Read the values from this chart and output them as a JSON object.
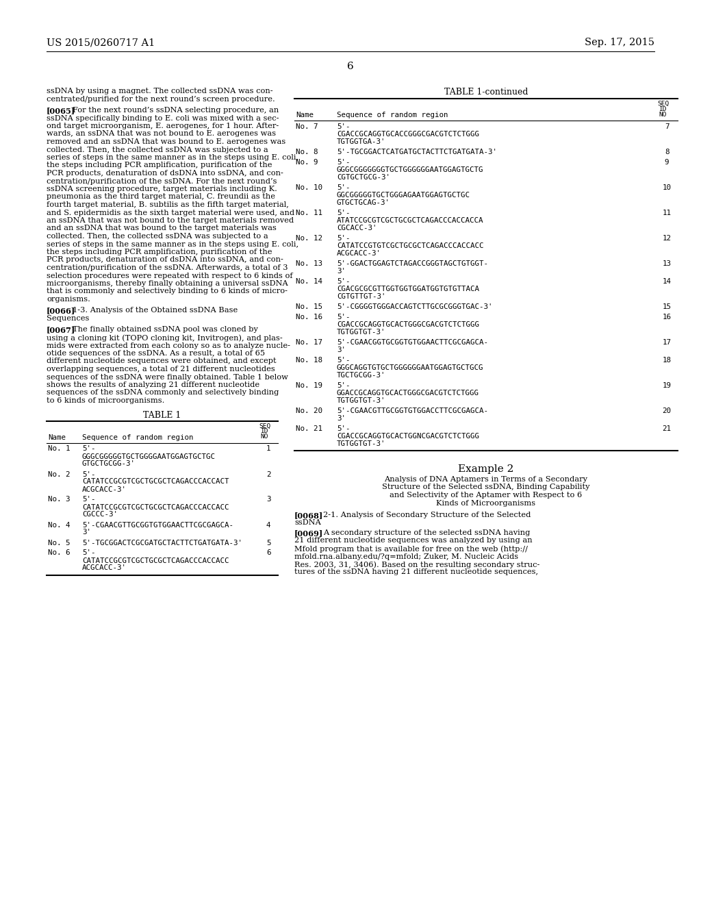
{
  "header_left": "US 2015/0260717 A1",
  "header_right": "Sep. 17, 2015",
  "page_number": "6",
  "bg_color": "#ffffff",
  "text_color": "#000000",
  "left_paragraphs": [
    {
      "type": "body",
      "lines": [
        "ssDNA by using a magnet. The collected ssDNA was con-",
        "centrated/purified for the next round’s screen procedure."
      ]
    },
    {
      "type": "labeled",
      "label": "[0065]",
      "lines": [
        "For the next round’s ssDNA selecting procedure, an",
        "ssDNA specifically binding to E. coli was mixed with a sec-",
        "ond target microorganism, E. aerogenes, for 1 hour. After-",
        "wards, an ssDNA that was not bound to E. aerogenes was",
        "removed and an ssDNA that was bound to E. aerogenes was",
        "collected. Then, the collected ssDNA was subjected to a",
        "series of steps in the same manner as in the steps using E. coli,",
        "the steps including PCR amplification, purification of the",
        "PCR products, denaturation of dsDNA into ssDNA, and con-",
        "centration/purification of the ssDNA. For the next round’s",
        "ssDNA screening procedure, target materials including K.",
        "pneumonia as the third target material, C. freundii as the",
        "fourth target material, B. subtilis as the fifth target material,",
        "and S. epidermidis as the sixth target material were used, and",
        "an ssDNA that was not bound to the target materials removed",
        "and an ssDNA that was bound to the target materials was",
        "collected. Then, the collected ssDNA was subjected to a",
        "series of steps in the same manner as in the steps using E. coli,",
        "the steps including PCR amplification, purification of the",
        "PCR products, denaturation of dsDNA into ssDNA, and con-",
        "centration/purification of the ssDNA. Afterwards, a total of 3",
        "selection procedures were repeated with respect to 6 kinds of",
        "microorganisms, thereby finally obtaining a universal ssDNA",
        "that is commonly and selectively binding to 6 kinds of micro-",
        "organisms."
      ]
    },
    {
      "type": "labeled",
      "label": "[0066]",
      "lines": [
        "1-3. Analysis of the Obtained ssDNA Base",
        "Sequences"
      ]
    },
    {
      "type": "labeled",
      "label": "[0067]",
      "lines": [
        "The finally obtained ssDNA pool was cloned by",
        "using a cloning kit (TOPO cloning kit, Invitrogen), and plas-",
        "mids were extracted from each colony so as to analyze nucle-",
        "otide sequences of the ssDNA. As a result, a total of 65",
        "different nucleotide sequences were obtained, and except",
        "overlapping sequences, a total of 21 different nucleotides",
        "sequences of the ssDNA were finally obtained. Table 1 below",
        "shows the results of analyzing 21 different nucleotide",
        "sequences of the ssDNA commonly and selectively binding",
        "to 6 kinds of microorganisms."
      ]
    }
  ],
  "left_table_title": "TABLE 1",
  "left_table_rows": [
    [
      "No. 1",
      [
        "5'-",
        "GGGCGGGGGTGCTGGGGAATGGAGTGCTGC",
        "GTGCTGCGG-3'"
      ],
      "1"
    ],
    [
      "No. 2",
      [
        "5'-",
        "CATATCCGCGTCGCTGCGCTCAGACCCACCACT",
        "ACGCACC-3'"
      ],
      "2"
    ],
    [
      "No. 3",
      [
        "5'-",
        "CATATCCGCGTCGCTGCGCTCAGACCCACCACC",
        "CGCCC-3'"
      ],
      "3"
    ],
    [
      "No. 4",
      [
        "5'-CGAACGTTGCGGTGTGGAACTTCGCGAGCA-",
        "3'"
      ],
      "4"
    ],
    [
      "No. 5",
      [
        "5'-TGCGGACTCGCGATGCTACTTCTGATGATA-3'"
      ],
      "5"
    ],
    [
      "No. 6",
      [
        "5'-",
        "CATATCCGCGTCGCTGCGCTCAGACCCACCACC",
        "ACGCACC-3'"
      ],
      "6"
    ]
  ],
  "right_table_title": "TABLE 1-continued",
  "right_table_rows": [
    [
      "No. 7",
      [
        "5'-",
        "CGACCGCAGGTGCACCGGGCGACGTCTCTGGG",
        "TGTGGTGA-3'"
      ],
      "7"
    ],
    [
      "No. 8",
      [
        "5'-TGCGGACTCATGATGCTACTTCTGATGATA-3'"
      ],
      "8"
    ],
    [
      "No. 9",
      [
        "5'-",
        "GGGCGGGGGGGTGCTGGGGGGAATGGAGTGCTG",
        "CGTGCTGCG-3'"
      ],
      "9"
    ],
    [
      "No. 10",
      [
        "5'-",
        "GGCGGGGGTGCTGGGAGAATGGAGTGCTGC",
        "GTGCTGCAG-3'"
      ],
      "10"
    ],
    [
      "No. 11",
      [
        "5'-",
        "ATATCCGCGTCGCTGCGCTCAGACCCACCACCA",
        "CGCACC-3'"
      ],
      "11"
    ],
    [
      "No. 12",
      [
        "5'-",
        "CATATCCGTGTCGCTGCGCTCAGACCCACCACC",
        "ACGCACC-3'"
      ],
      "12"
    ],
    [
      "No. 13",
      [
        "5'-GGACTGGAGTCTAGACCGGGTAGCTGTGGT-",
        "3'"
      ],
      "13"
    ],
    [
      "No. 14",
      [
        "5'-",
        "CGACGCGCGTTGGTGGTGGATGGTGTGTTACA",
        "CGTGTTGT-3'"
      ],
      "14"
    ],
    [
      "No. 15",
      [
        "5'-CGGGGTGGGACCAGTCTTGCGCGGGTGAC-3'"
      ],
      "15"
    ],
    [
      "No. 16",
      [
        "5'-",
        "CGACCGCAGGTGCACTGGGCGACGTCTCTGGG",
        "TGTGGTGT-3'"
      ],
      "16"
    ],
    [
      "No. 17",
      [
        "5'-CGAACGGTGCGGTGTGGAACTTCGCGAGCA-",
        "3'"
      ],
      "17"
    ],
    [
      "No. 18",
      [
        "5'-",
        "GGGCAGGTGTGCTGGGGGGAATGGAGTGCTGCG",
        "TGCTGCGG-3'"
      ],
      "18"
    ],
    [
      "No. 19",
      [
        "5'-",
        "GGACCGCAGGTGCACTGGGCGACGTCTCTGGG",
        "TGTGGTGT-3'"
      ],
      "19"
    ],
    [
      "No. 20",
      [
        "5'-CGAACGTTGCGGTGTGGACCTTCGCGAGCA-",
        "3'"
      ],
      "20"
    ],
    [
      "No. 21",
      [
        "5'-",
        "CGACCGCAGGTGCACTGGNCGACGTCTCTGGG",
        "TGTGGTGT-3'"
      ],
      "21"
    ]
  ],
  "example2_title": "Example 2",
  "example2_subtitle_lines": [
    "Analysis of DNA Aptamers in Terms of a Secondary",
    "Structure of the Selected ssDNA, Binding Capability",
    "and Selectivity of the Aptamer with Respect to 6",
    "Kinds of Microorganisms"
  ],
  "para_0068_lines": [
    "2-1. Analysis of Secondary Structure of the Selected",
    "ssDNA"
  ],
  "para_0069_lines": [
    "A secondary structure of the selected ssDNA having",
    "21 different nucleotide sequences was analyzed by using an",
    "Mfold program that is available for free on the web (http://",
    "mfold.rna.albany.edu/?q=mfold; Zuker, M. Nucleic Acids",
    "Res. 2003, 31, 3406). Based on the resulting secondary struc-",
    "tures of the ssDNA having 21 different nucleotide sequences,"
  ]
}
